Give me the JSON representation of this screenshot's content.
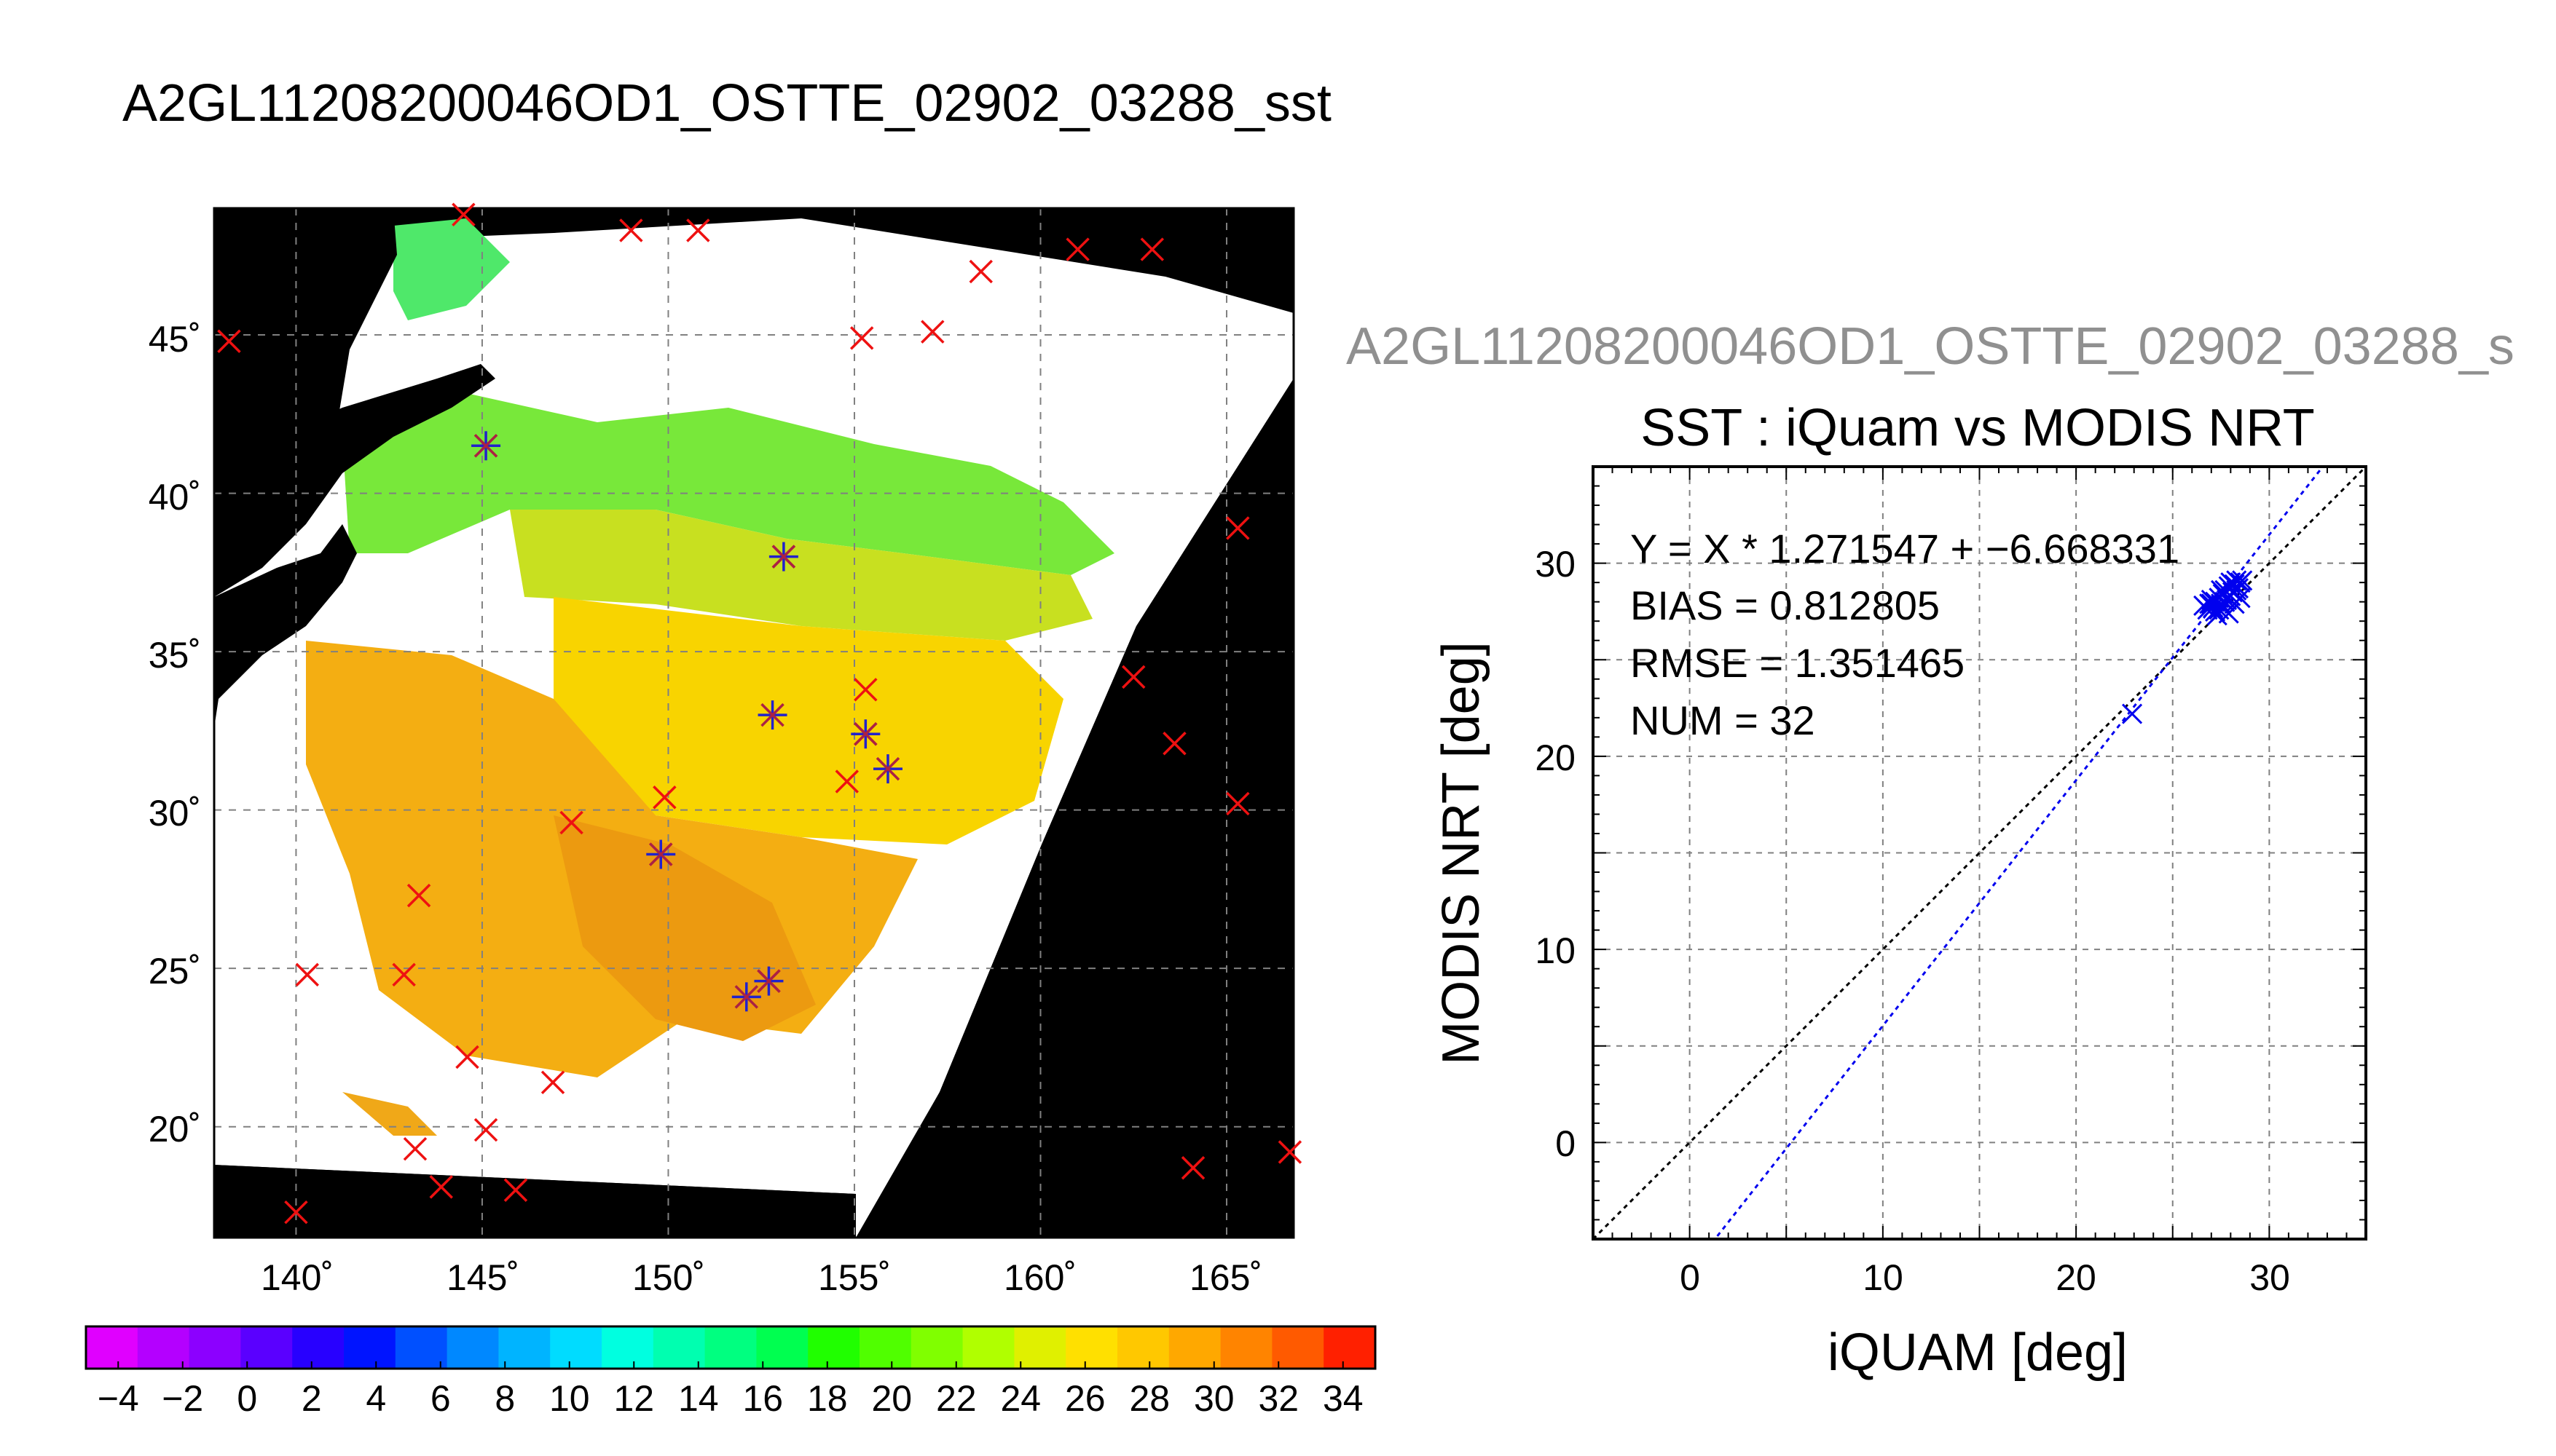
{
  "title": "A2GL11208200046OD1_OSTTE_02902_03288_sst",
  "chart_data": [
    {
      "type": "heatmap",
      "title": "A2GL11208200046OD1_OSTTE_02902_03288_sst",
      "xlim": [
        137.8,
        166.8
      ],
      "ylim": [
        16.5,
        49.0
      ],
      "x_ticks": [
        "140˚",
        "145˚",
        "150˚",
        "155˚",
        "160˚",
        "165˚"
      ],
      "x_tick_values": [
        140,
        145,
        150,
        155,
        160,
        165
      ],
      "y_ticks": [
        "20˚",
        "25˚",
        "30˚",
        "35˚",
        "40˚",
        "45˚"
      ],
      "y_tick_values": [
        20,
        25,
        30,
        35,
        40,
        45
      ],
      "grid": true,
      "colorbar": {
        "min": -5,
        "max": 35,
        "ticks": [
          "−4",
          "−2",
          "0",
          "2",
          "4",
          "6",
          "8",
          "10",
          "12",
          "14",
          "16",
          "18",
          "20",
          "22",
          "24",
          "26",
          "28",
          "30",
          "32",
          "34"
        ],
        "tick_values": [
          -4,
          -2,
          0,
          2,
          4,
          6,
          8,
          10,
          12,
          14,
          16,
          18,
          20,
          22,
          24,
          26,
          28,
          30,
          32,
          34
        ],
        "colors": [
          "#e000ff",
          "#b400ff",
          "#8c00ff",
          "#5a00ff",
          "#2800ff",
          "#0014ff",
          "#0050ff",
          "#0088ff",
          "#00b4ff",
          "#00dcff",
          "#00ffe0",
          "#00ffb0",
          "#00ff80",
          "#00ff50",
          "#20ff00",
          "#50ff00",
          "#80ff00",
          "#b0ff00",
          "#e0f000",
          "#ffe000",
          "#ffc800",
          "#ffa800",
          "#ff8400",
          "#ff5a00",
          "#ff2000"
        ]
      },
      "markers_red": [
        [
          138.2,
          44.8
        ],
        [
          144.5,
          48.8
        ],
        [
          149.0,
          48.3
        ],
        [
          150.8,
          48.3
        ],
        [
          158.4,
          47.0
        ],
        [
          161.0,
          47.7
        ],
        [
          163.0,
          47.7
        ],
        [
          155.2,
          44.9
        ],
        [
          157.1,
          45.1
        ],
        [
          145.1,
          41.5
        ],
        [
          153.1,
          38.0
        ],
        [
          165.3,
          38.9
        ],
        [
          155.3,
          33.8
        ],
        [
          162.5,
          34.2
        ],
        [
          163.6,
          32.1
        ],
        [
          165.3,
          30.2
        ],
        [
          147.4,
          29.6
        ],
        [
          149.9,
          30.4
        ],
        [
          154.8,
          30.9
        ],
        [
          143.3,
          27.3
        ],
        [
          140.3,
          24.8
        ],
        [
          142.9,
          24.8
        ],
        [
          144.6,
          22.2
        ],
        [
          146.9,
          21.4
        ],
        [
          145.1,
          19.9
        ],
        [
          143.2,
          19.3
        ],
        [
          143.9,
          18.1
        ],
        [
          145.9,
          18.0
        ],
        [
          140.0,
          17.3
        ],
        [
          164.1,
          18.7
        ],
        [
          166.7,
          19.2
        ],
        [
          149.8,
          28.6
        ],
        [
          152.7,
          24.6
        ],
        [
          155.3,
          32.4
        ]
      ],
      "markers_blue": [
        [
          145.1,
          41.5
        ],
        [
          153.1,
          38.0
        ],
        [
          152.8,
          33.0
        ],
        [
          155.3,
          32.4
        ],
        [
          155.9,
          31.3
        ],
        [
          149.8,
          28.6
        ],
        [
          152.7,
          24.6
        ],
        [
          152.1,
          24.1
        ]
      ]
    },
    {
      "type": "scatter",
      "title": "SST : iQuam vs MODIS NRT",
      "subtitle": "A2GL11208200046OD1_OSTTE_02902_03288_s",
      "xlabel": "iQUAM [deg]",
      "ylabel": "MODIS NRT [deg]",
      "xlim": [
        -5,
        35
      ],
      "ylim": [
        -5,
        35
      ],
      "x_ticks": [
        "0",
        "10",
        "20",
        "30"
      ],
      "x_tick_values": [
        0,
        10,
        20,
        30
      ],
      "y_ticks": [
        "0",
        "10",
        "20",
        "30"
      ],
      "y_tick_values": [
        0,
        10,
        20,
        30
      ],
      "grid": true,
      "annotations": [
        "Y = X * 1.271547 + −6.668331",
        "BIAS = 0.812805",
        "RMSE = 1.351465",
        "NUM = 32"
      ],
      "points": [
        [
          22.9,
          22.2
        ],
        [
          26.6,
          27.8
        ],
        [
          26.8,
          27.6
        ],
        [
          27.0,
          27.9
        ],
        [
          27.1,
          27.7
        ],
        [
          27.2,
          28.0
        ],
        [
          27.2,
          27.5
        ],
        [
          27.3,
          27.3
        ],
        [
          27.4,
          28.2
        ],
        [
          27.5,
          27.9
        ],
        [
          27.6,
          28.4
        ],
        [
          27.6,
          27.7
        ],
        [
          27.7,
          28.6
        ],
        [
          27.8,
          28.1
        ],
        [
          27.9,
          28.8
        ],
        [
          27.9,
          27.4
        ],
        [
          28.0,
          29.0
        ],
        [
          28.1,
          28.5
        ],
        [
          28.2,
          28.9
        ],
        [
          28.2,
          27.9
        ],
        [
          28.3,
          29.1
        ],
        [
          28.4,
          28.7
        ],
        [
          28.5,
          29.0
        ],
        [
          28.5,
          28.2
        ],
        [
          27.0,
          28.1
        ],
        [
          27.4,
          27.6
        ],
        [
          27.7,
          28.0
        ],
        [
          28.0,
          28.3
        ],
        [
          28.3,
          28.6
        ],
        [
          26.9,
          27.9
        ],
        [
          28.6,
          29.1
        ],
        [
          27.5,
          28.6
        ]
      ],
      "regression": {
        "slope": 1.271547,
        "intercept": -6.668331
      },
      "identity_line": true,
      "point_color": "#0000ee"
    }
  ]
}
